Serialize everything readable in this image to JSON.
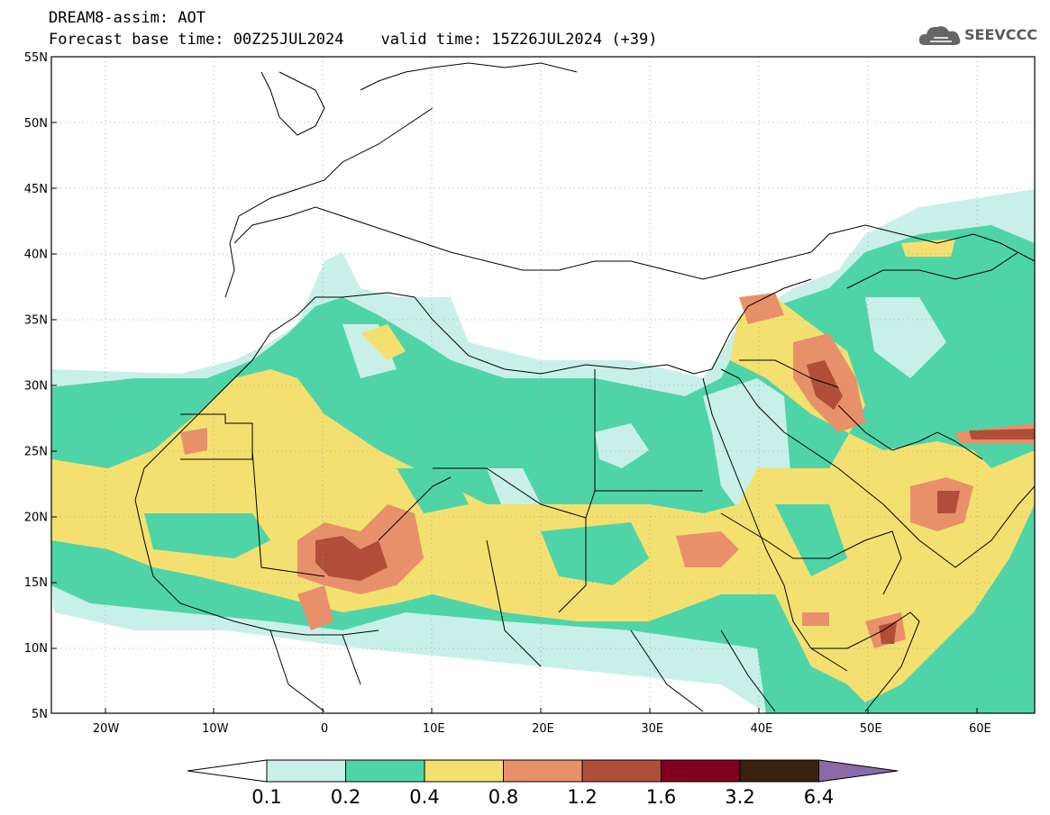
{
  "header": {
    "line1": "DREAM8-assim: AOT",
    "line2": "Forecast base time: 00Z25JUL2024    valid time: 15Z26JUL2024 (+39)"
  },
  "logo": {
    "text": "SEEVCCC",
    "icon": "cloud-icon"
  },
  "map": {
    "lon_range": [
      -25,
      65
    ],
    "lat_range": [
      5,
      55
    ],
    "lon_ticks": [
      {
        "value": -20,
        "label": "20W"
      },
      {
        "value": -10,
        "label": "10W"
      },
      {
        "value": 0,
        "label": "0"
      },
      {
        "value": 10,
        "label": "10E"
      },
      {
        "value": 20,
        "label": "20E"
      },
      {
        "value": 30,
        "label": "30E"
      },
      {
        "value": 40,
        "label": "40E"
      },
      {
        "value": 50,
        "label": "50E"
      },
      {
        "value": 60,
        "label": "60E"
      }
    ],
    "lat_ticks": [
      {
        "value": 55,
        "label": "55N"
      },
      {
        "value": 50,
        "label": "50N"
      },
      {
        "value": 45,
        "label": "45N"
      },
      {
        "value": 40,
        "label": "40N"
      },
      {
        "value": 35,
        "label": "35N"
      },
      {
        "value": 30,
        "label": "30N"
      },
      {
        "value": 25,
        "label": "25N"
      },
      {
        "value": 20,
        "label": "20N"
      },
      {
        "value": 15,
        "label": "15N"
      },
      {
        "value": 10,
        "label": "10N"
      },
      {
        "value": 5,
        "label": "5N"
      }
    ],
    "grid": true,
    "field": "AOT"
  },
  "colorbar": {
    "labels": [
      "0.1",
      "0.2",
      "0.4",
      "0.8",
      "1.2",
      "1.6",
      "3.2",
      "6.4"
    ],
    "under_color": "#ffffff",
    "colors": [
      "#c8f0e8",
      "#4fd4a8",
      "#f4e070",
      "#e8906a",
      "#b04e3a",
      "#800020",
      "#3a2210"
    ],
    "over_color": "#8a6aa8"
  }
}
